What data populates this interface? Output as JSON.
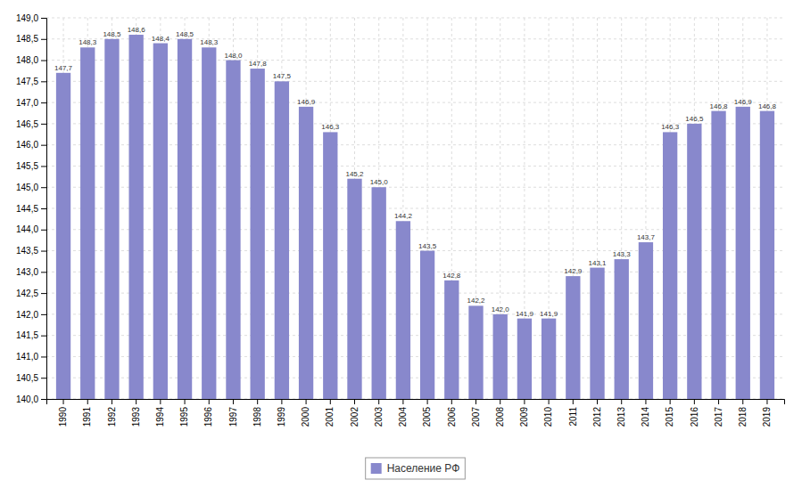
{
  "chart_data": {
    "type": "bar",
    "categories": [
      "1990",
      "1991",
      "1992",
      "1993",
      "1994",
      "1995",
      "1996",
      "1997",
      "1998",
      "1999",
      "2000",
      "2001",
      "2002",
      "2003",
      "2004",
      "2005",
      "2006",
      "2007",
      "2008",
      "2009",
      "2010",
      "2011",
      "2012",
      "2013",
      "2014",
      "2015",
      "2016",
      "2017",
      "2018",
      "2019"
    ],
    "series": [
      {
        "name": "Население РФ",
        "color": "#8888cc",
        "values": [
          147.7,
          148.3,
          148.5,
          148.6,
          148.4,
          148.5,
          148.3,
          148.0,
          147.8,
          147.5,
          146.9,
          146.3,
          145.2,
          145.0,
          144.2,
          143.5,
          142.8,
          142.2,
          142.0,
          141.9,
          141.9,
          142.9,
          143.1,
          143.3,
          143.7,
          146.3,
          146.5,
          146.8,
          146.9,
          146.8
        ],
        "value_labels": [
          "147,7",
          "148,3",
          "148,5",
          "148,6",
          "148,4",
          "148,5",
          "148,3",
          "148,0",
          "147,8",
          "147,5",
          "146,9",
          "146,3",
          "145,2",
          "145,0",
          "144,2",
          "143,5",
          "142,8",
          "142,2",
          "142,0",
          "141,9",
          "141,9",
          "142,9",
          "143,1",
          "143,3",
          "143,7",
          "146,3",
          "146,5",
          "146,8",
          "146,9",
          "146,8"
        ]
      }
    ],
    "ylim": [
      140.0,
      149.0
    ],
    "yticks": [
      {
        "value": 140.0,
        "label": "140,0"
      },
      {
        "value": 140.5,
        "label": "140,5"
      },
      {
        "value": 141.0,
        "label": "141,0"
      },
      {
        "value": 141.5,
        "label": "141,5"
      },
      {
        "value": 142.0,
        "label": "142,0"
      },
      {
        "value": 142.5,
        "label": "142,5"
      },
      {
        "value": 143.0,
        "label": "143,0"
      },
      {
        "value": 143.5,
        "label": "143,5"
      },
      {
        "value": 144.0,
        "label": "144,0"
      },
      {
        "value": 144.5,
        "label": "144,5"
      },
      {
        "value": 145.0,
        "label": "145,0"
      },
      {
        "value": 145.5,
        "label": "145,5"
      },
      {
        "value": 146.0,
        "label": "146,0"
      },
      {
        "value": 146.5,
        "label": "146,5"
      },
      {
        "value": 147.0,
        "label": "147,0"
      },
      {
        "value": 147.5,
        "label": "147,5"
      },
      {
        "value": 148.0,
        "label": "148,0"
      },
      {
        "value": 148.5,
        "label": "148,5"
      },
      {
        "value": 149.0,
        "label": "149,0"
      }
    ],
    "grid": true,
    "legend": "bottom",
    "data_labels": true
  }
}
